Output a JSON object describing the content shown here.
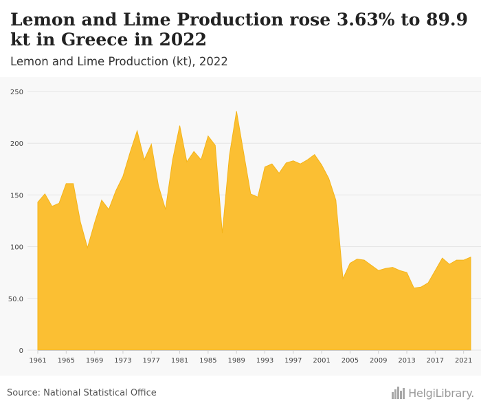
{
  "header": {
    "title": "Lemon and Lime Production rose 3.63% to 89.9 kt in Greece in 2022",
    "subtitle": "Lemon and Lime Production (kt), 2022"
  },
  "footer": {
    "source": "Source: National Statistical Office",
    "logo_text": "HelgiLibrary."
  },
  "colors": {
    "area_fill": "#fbbf33",
    "area_stroke": "#f4b41a",
    "grid": "#e4e4e4",
    "background": "#f8f8f8"
  },
  "chart_data": {
    "type": "area",
    "title": "Lemon and Lime Production (kt), 2022",
    "xlabel": "",
    "ylabel": "",
    "ylim": [
      0,
      250
    ],
    "yticks": [
      0,
      50,
      100,
      150,
      200,
      250
    ],
    "ytick_labels": [
      "0",
      "50.0",
      "100",
      "150",
      "200",
      "250"
    ],
    "xticks": [
      "1961",
      "1965",
      "1969",
      "1973",
      "1977",
      "1981",
      "1985",
      "1989",
      "1993",
      "1997",
      "2001",
      "2005",
      "2009",
      "2013",
      "2017",
      "2021"
    ],
    "grid": true,
    "legend": "none",
    "x": [
      1961,
      1962,
      1963,
      1964,
      1965,
      1966,
      1967,
      1968,
      1969,
      1970,
      1971,
      1972,
      1973,
      1974,
      1975,
      1976,
      1977,
      1978,
      1979,
      1980,
      1981,
      1982,
      1983,
      1984,
      1985,
      1986,
      1987,
      1988,
      1989,
      1990,
      1991,
      1992,
      1993,
      1994,
      1995,
      1996,
      1997,
      1998,
      1999,
      2000,
      2001,
      2002,
      2003,
      2004,
      2005,
      2006,
      2007,
      2008,
      2009,
      2010,
      2011,
      2012,
      2013,
      2014,
      2015,
      2016,
      2017,
      2018,
      2019,
      2020,
      2021,
      2022
    ],
    "values": [
      143,
      151,
      139,
      142,
      161,
      161,
      124,
      99,
      123,
      145,
      136,
      154,
      168,
      191,
      212,
      184,
      199,
      159,
      136,
      184,
      217,
      182,
      192,
      184,
      207,
      198,
      113,
      188,
      231,
      191,
      151,
      148,
      177,
      180,
      171,
      181,
      183,
      180,
      184,
      189,
      179,
      166,
      145,
      69,
      84,
      88,
      87,
      82,
      77,
      79,
      80,
      77,
      75,
      60,
      61,
      65,
      77,
      89,
      83,
      87,
      87,
      89.9
    ]
  }
}
